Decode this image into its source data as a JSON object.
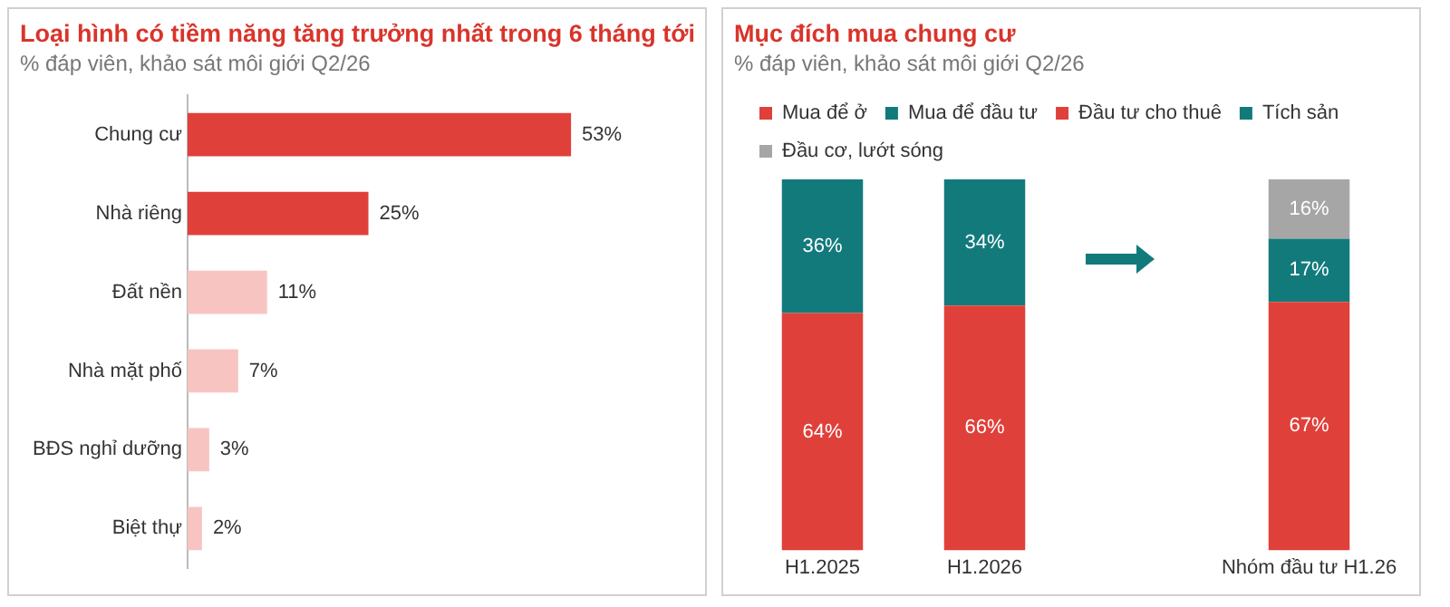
{
  "chart_data": [
    {
      "type": "bar",
      "title": "Loại hình có tiềm năng tăng trưởng nhất trong 6 tháng tới",
      "subtitle": "% đáp viên, khảo sát môi giới Q2/26",
      "orientation": "horizontal",
      "categories": [
        "Chung cư",
        "Nhà riêng",
        "Đất nền",
        "Nhà mặt phố",
        "BĐS nghỉ dưỡng",
        "Biệt thự"
      ],
      "values": [
        53,
        25,
        11,
        7,
        3,
        2
      ],
      "colors": [
        "#e0403a",
        "#e0403a",
        "#f8c4c2",
        "#f8c4c2",
        "#f8c4c2",
        "#f8c4c2"
      ],
      "value_labels": [
        "53%",
        "25%",
        "11%",
        "7%",
        "3%",
        "2%"
      ],
      "tick_labels": "y",
      "legend": false
    },
    {
      "type": "bar",
      "title": "Mục đích mua chung cư",
      "subtitle": "% đáp viên, khảo sát môi giới Q2/26",
      "stacked": true,
      "categories": [
        "H1.2025",
        "H1.2026",
        null,
        "Nhóm đầu tư H1.26"
      ],
      "series": [
        {
          "name": "Mua để ở",
          "color": "#e0403a",
          "values": [
            64,
            66,
            null,
            null
          ],
          "value_labels": [
            "64%",
            "66%",
            null,
            null
          ]
        },
        {
          "name": "Mua để đầu tư",
          "color": "#137a7c",
          "values": [
            36,
            34,
            null,
            null
          ],
          "value_labels": [
            "36%",
            "34%",
            null,
            null
          ]
        },
        {
          "name": "Đầu tư cho thuê",
          "color": "#e0403a",
          "values": [
            null,
            null,
            null,
            67
          ],
          "value_labels": [
            null,
            null,
            null,
            "67%"
          ]
        },
        {
          "name": "Tích sản",
          "color": "#137a7c",
          "values": [
            null,
            null,
            null,
            17
          ],
          "value_labels": [
            null,
            null,
            null,
            "17%"
          ]
        },
        {
          "name": "Đầu cơ, lướt sóng",
          "color": "#a6a6a6",
          "values": [
            null,
            null,
            null,
            16
          ],
          "value_labels": [
            null,
            null,
            null,
            "16%"
          ]
        }
      ],
      "tick_labels": "x",
      "legend": "top"
    }
  ]
}
